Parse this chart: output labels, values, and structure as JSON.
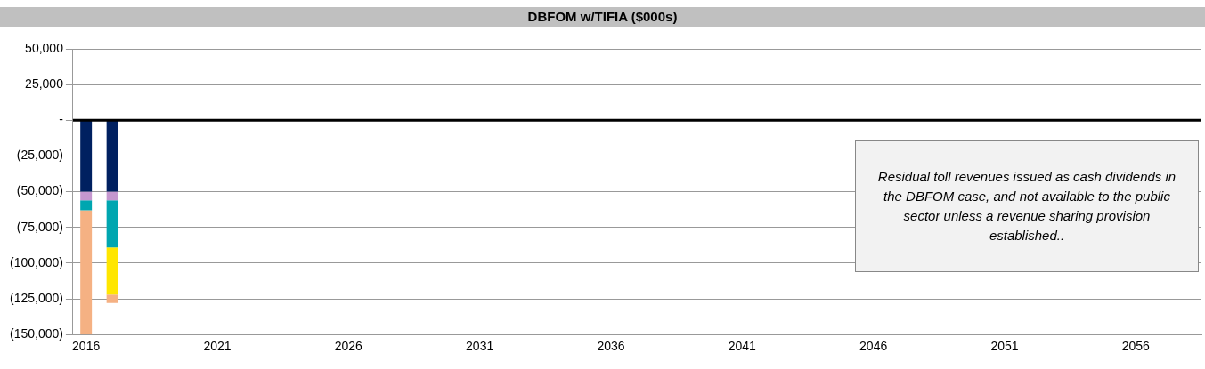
{
  "chart_data": {
    "type": "bar",
    "title": "DBFOM w/TIFIA ($000s)",
    "stacked": true,
    "categories": [
      "2016",
      null,
      null,
      null,
      null,
      "2021",
      null,
      null,
      null,
      null,
      "2026",
      null,
      null,
      null,
      null,
      "2031",
      null,
      null,
      null,
      null,
      "2036",
      null,
      null,
      null,
      null,
      "2041",
      null,
      null,
      null,
      null,
      "2046",
      null,
      null,
      null,
      null,
      "2051",
      null,
      null,
      null,
      null,
      "2056",
      null,
      null
    ],
    "series": [
      {
        "color": "#002060",
        "values": [
          -50000,
          -50000,
          null,
          null,
          null,
          null,
          null,
          null,
          null,
          null,
          null,
          null,
          null,
          null,
          null,
          null,
          null,
          null,
          null,
          null,
          null,
          null,
          null,
          null,
          null,
          null,
          null,
          null,
          null,
          null,
          null,
          null,
          null,
          null,
          null,
          null,
          null,
          null,
          null,
          null,
          null,
          null,
          null
        ]
      },
      {
        "color": "#c597cf",
        "values": [
          -6000,
          -6000,
          null,
          null,
          null,
          null,
          null,
          null,
          null,
          null,
          null,
          null,
          null,
          null,
          null,
          null,
          null,
          null,
          null,
          null,
          null,
          null,
          null,
          null,
          null,
          null,
          null,
          null,
          null,
          null,
          null,
          null,
          null,
          null,
          null,
          null,
          null,
          null,
          null,
          null,
          null,
          null,
          null
        ]
      },
      {
        "color": "#00a6b0",
        "values": [
          -7000,
          -33000,
          null,
          null,
          null,
          null,
          null,
          null,
          null,
          null,
          null,
          null,
          null,
          null,
          null,
          null,
          null,
          null,
          null,
          null,
          null,
          null,
          null,
          null,
          null,
          null,
          null,
          null,
          null,
          null,
          null,
          null,
          null,
          null,
          null,
          null,
          null,
          null,
          null,
          null,
          null,
          null,
          null
        ]
      },
      {
        "color": "#ffe600",
        "values": [
          0,
          -33000,
          null,
          null,
          null,
          null,
          null,
          null,
          null,
          null,
          null,
          null,
          null,
          null,
          null,
          null,
          null,
          null,
          null,
          null,
          null,
          null,
          null,
          null,
          null,
          null,
          null,
          null,
          null,
          null,
          null,
          null,
          null,
          null,
          null,
          null,
          null,
          null,
          null,
          null,
          null,
          null,
          null
        ]
      },
      {
        "color": "#f5b183",
        "values": [
          -87000,
          -6000,
          null,
          null,
          null,
          null,
          null,
          null,
          null,
          null,
          null,
          null,
          null,
          null,
          null,
          null,
          null,
          null,
          null,
          null,
          null,
          null,
          null,
          null,
          null,
          null,
          null,
          null,
          null,
          null,
          null,
          null,
          null,
          null,
          null,
          null,
          null,
          null,
          null,
          null,
          null,
          null,
          null
        ]
      }
    ],
    "ylim": [
      -150000,
      50000
    ],
    "yticks": [
      {
        "value": -150000,
        "label": "(150,000)"
      },
      {
        "value": -125000,
        "label": "(125,000)"
      },
      {
        "value": -100000,
        "label": "(100,000)"
      },
      {
        "value": -75000,
        "label": "(75,000)"
      },
      {
        "value": -50000,
        "label": "(50,000)"
      },
      {
        "value": -25000,
        "label": "(25,000)"
      },
      {
        "value": 0,
        "label": "-"
      },
      {
        "value": 25000,
        "label": "25,000"
      },
      {
        "value": 50000,
        "label": "50,000"
      }
    ],
    "grid": "y",
    "ref_lines": [
      {
        "axis": "y",
        "value": 0,
        "color": "#000000"
      }
    ],
    "annotations": [
      "Residual toll revenues issued as cash dividends in the DBFOM case, and not available to the public sector unless a revenue sharing provision established.."
    ]
  }
}
